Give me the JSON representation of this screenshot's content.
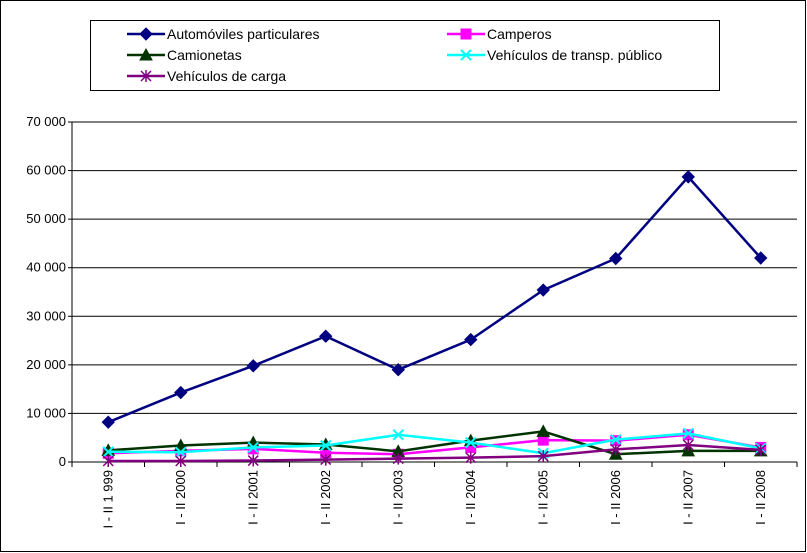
{
  "chart_data": {
    "type": "line",
    "title": "",
    "xlabel": "",
    "ylabel": "",
    "ylim": [
      0,
      70000
    ],
    "yticks": [
      0,
      10000,
      20000,
      30000,
      40000,
      50000,
      60000,
      70000
    ],
    "ytick_labels": [
      "0",
      "10 000",
      "20 000",
      "30 000",
      "40 000",
      "50 000",
      "60 000",
      "70 000"
    ],
    "categories": [
      "I - II  1 999",
      "I - II  2000",
      "I - II  2001",
      "I - II  2002",
      "I - II  2003",
      "I - II  2004",
      "I - II  2005",
      "I - II  2006",
      "I - II  2007",
      "I - II  2008"
    ],
    "grid": "horizontal",
    "legend_position": "top",
    "series": [
      {
        "name": "Automóviles particulares",
        "color": "#000080",
        "marker": "diamond",
        "values": [
          8200,
          14300,
          19800,
          25900,
          19000,
          25200,
          35400,
          41900,
          58700,
          42000
        ]
      },
      {
        "name": "Camperos",
        "color": "#ff00ff",
        "marker": "square",
        "values": [
          1800,
          2300,
          2700,
          1900,
          1600,
          3000,
          4500,
          4400,
          5600,
          3000
        ]
      },
      {
        "name": "Camionetas",
        "color": "#003300",
        "marker": "triangle",
        "values": [
          2400,
          3400,
          4000,
          3600,
          2200,
          4400,
          6300,
          1600,
          2300,
          2300
        ]
      },
      {
        "name": "Vehículos de transp. público",
        "color": "#00ffff",
        "marker": "x",
        "values": [
          2100,
          2000,
          3000,
          3400,
          5600,
          4000,
          1800,
          4600,
          5900,
          2800
        ]
      },
      {
        "name": "Vehículos de carga",
        "color": "#800080",
        "marker": "star",
        "values": [
          200,
          200,
          300,
          500,
          700,
          900,
          1200,
          2600,
          3500,
          2500
        ]
      }
    ]
  }
}
